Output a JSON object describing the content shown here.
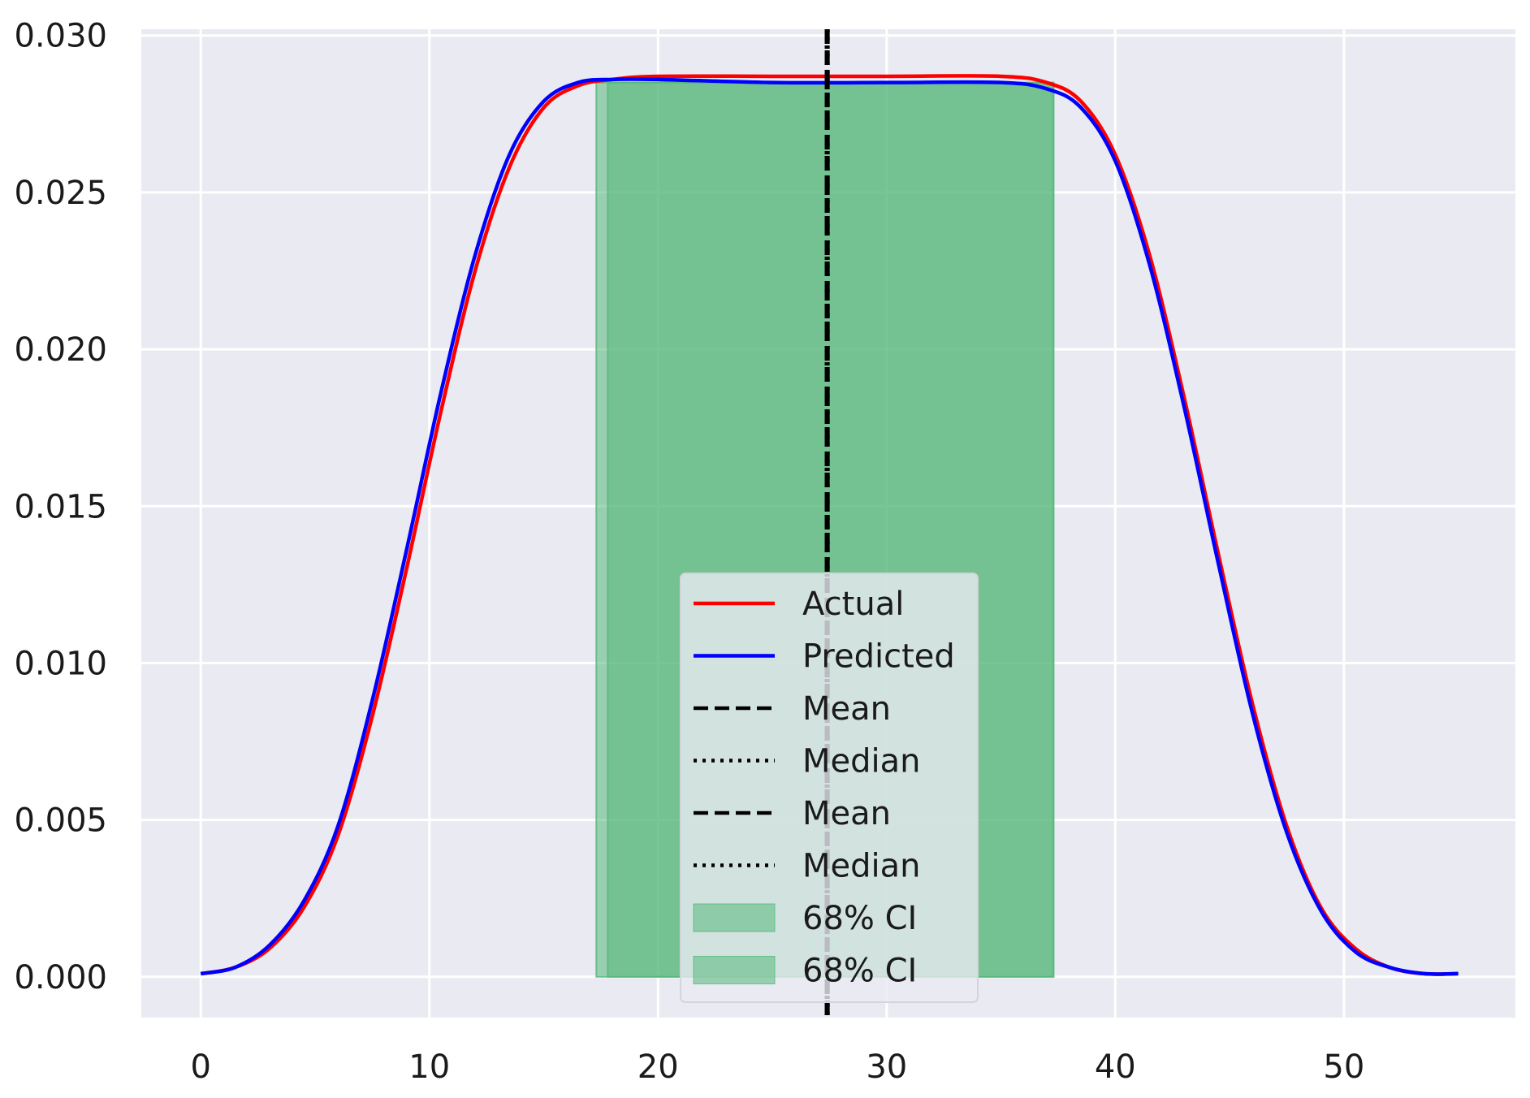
{
  "colors": {
    "plot_background": "#eaeaf2",
    "grid": "#ffffff",
    "actual": "#ff0000",
    "predicted": "#0000ff",
    "mean_median": "#000000",
    "ci_fill": "#55b87a",
    "legend_background": "#eaeaf2"
  },
  "chart_data": {
    "type": "line",
    "title": "",
    "xlabel": "",
    "ylabel": "",
    "xlim": [
      -2.6,
      57.5
    ],
    "ylim": [
      -0.0013,
      0.0302
    ],
    "x_ticks": [
      0,
      10,
      20,
      30,
      40,
      50
    ],
    "x_tick_labels": [
      "0",
      "10",
      "20",
      "30",
      "40",
      "50"
    ],
    "y_ticks": [
      0.0,
      0.005,
      0.01,
      0.015,
      0.02,
      0.025,
      0.03
    ],
    "y_tick_labels": [
      "0.000",
      "0.005",
      "0.010",
      "0.015",
      "0.020",
      "0.025",
      "0.030"
    ],
    "grid": true,
    "legend_position": "bottom-center",
    "series": [
      {
        "name": "Actual",
        "color": "#ff0000",
        "x": [
          0,
          1.5,
          3,
          4.5,
          6,
          7.5,
          9,
          10.5,
          12,
          13.5,
          15,
          16.5,
          18,
          20,
          25,
          30,
          35,
          37,
          38.5,
          40,
          41.5,
          43,
          44.5,
          46,
          47.5,
          49,
          50.5,
          52,
          53.5,
          55
        ],
        "y": [
          0.0001,
          0.0003,
          0.0009,
          0.0022,
          0.0045,
          0.0083,
          0.013,
          0.018,
          0.0225,
          0.0258,
          0.0277,
          0.0284,
          0.0286,
          0.0287,
          0.0287,
          0.0287,
          0.0287,
          0.0285,
          0.0279,
          0.0262,
          0.023,
          0.0185,
          0.0135,
          0.0087,
          0.0048,
          0.0022,
          0.0009,
          0.0003,
          0.0001,
          0.0001
        ]
      },
      {
        "name": "Predicted",
        "color": "#0000ff",
        "x": [
          0,
          1.5,
          3,
          4.5,
          6,
          7.5,
          9,
          10.5,
          12,
          13.5,
          15,
          16.5,
          18,
          20,
          25,
          30,
          35,
          37,
          38.5,
          40,
          41.5,
          43,
          44.5,
          46,
          47.5,
          49,
          50.5,
          52,
          53.5,
          55
        ],
        "y": [
          0.0001,
          0.0003,
          0.001,
          0.0024,
          0.0048,
          0.0088,
          0.0136,
          0.0186,
          0.023,
          0.0262,
          0.0279,
          0.0285,
          0.0286,
          0.0286,
          0.0285,
          0.0285,
          0.0285,
          0.0283,
          0.0277,
          0.026,
          0.0227,
          0.0182,
          0.0132,
          0.0084,
          0.0046,
          0.0021,
          0.0008,
          0.0003,
          0.0001,
          0.0001
        ]
      }
    ],
    "vertical_lines": [
      {
        "name": "Mean",
        "x": 27.4,
        "style": "dashed"
      },
      {
        "name": "Median",
        "x": 27.4,
        "style": "dotted"
      },
      {
        "name": "Mean",
        "x": 27.4,
        "style": "dashed"
      },
      {
        "name": "Median",
        "x": 27.4,
        "style": "dotted"
      }
    ],
    "ci_bands": [
      {
        "name": "68% CI",
        "x_start": 17.3,
        "x_end": 37.3,
        "y_max": 0.0285
      },
      {
        "name": "68% CI",
        "x_start": 17.8,
        "x_end": 37.3,
        "y_max": 0.0285
      }
    ],
    "legend": [
      "Actual",
      "Predicted",
      "Mean",
      "Median",
      "Mean",
      "Median",
      "68% CI",
      "68% CI"
    ]
  }
}
